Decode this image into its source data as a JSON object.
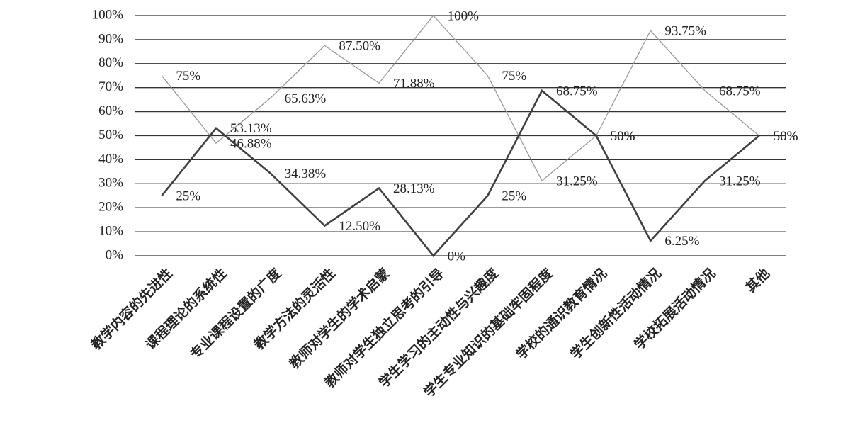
{
  "chart_data": {
    "type": "line",
    "categories": [
      "教学内容的先进性",
      "课程理论的系统性",
      "专业课程设置的广度",
      "教学方法的灵活性",
      "教师对学生的学术启蒙",
      "教师对学生独立思考的引导",
      "学生学习的主动性与兴趣度",
      "学生专业知识的基础牢固程度",
      "学校的通识教育情况",
      "学生创新性活动情况",
      "学校拓展活动情况",
      "其他"
    ],
    "series": [
      {
        "color": "#9a9a9a",
        "values": [
          75,
          46.88,
          65.63,
          87.5,
          71.88,
          100,
          75,
          31.25,
          50,
          93.75,
          68.75,
          50
        ],
        "value_labels": [
          "75%",
          "46.88%",
          "65.63%",
          "87.50%",
          "71.88%",
          "100%",
          "75%",
          "31.25%",
          "50%",
          "93.75%",
          "68.75%",
          "50%"
        ]
      },
      {
        "color": "#404040",
        "values": [
          25,
          53.13,
          34.38,
          12.5,
          28.13,
          0,
          25,
          68.75,
          50,
          6.25,
          31.25,
          50
        ],
        "value_labels": [
          "25%",
          "53.13%",
          "34.38%",
          "12.50%",
          "28.13%",
          "0%",
          "25%",
          "68.75%",
          "50%",
          "6.25%",
          "31.25%",
          "50%"
        ]
      }
    ],
    "ylim": [
      0,
      100
    ],
    "yticks": [
      {
        "value": 0,
        "label": "0%"
      },
      {
        "value": 10,
        "label": "10%"
      },
      {
        "value": 20,
        "label": "20%"
      },
      {
        "value": 30,
        "label": "30%"
      },
      {
        "value": 40,
        "label": "40%"
      },
      {
        "value": 50,
        "label": "50%"
      },
      {
        "value": 60,
        "label": "60%"
      },
      {
        "value": 70,
        "label": "70%"
      },
      {
        "value": 80,
        "label": "80%"
      },
      {
        "value": 90,
        "label": "90%"
      },
      {
        "value": 100,
        "label": "100%"
      }
    ],
    "grid": true
  }
}
